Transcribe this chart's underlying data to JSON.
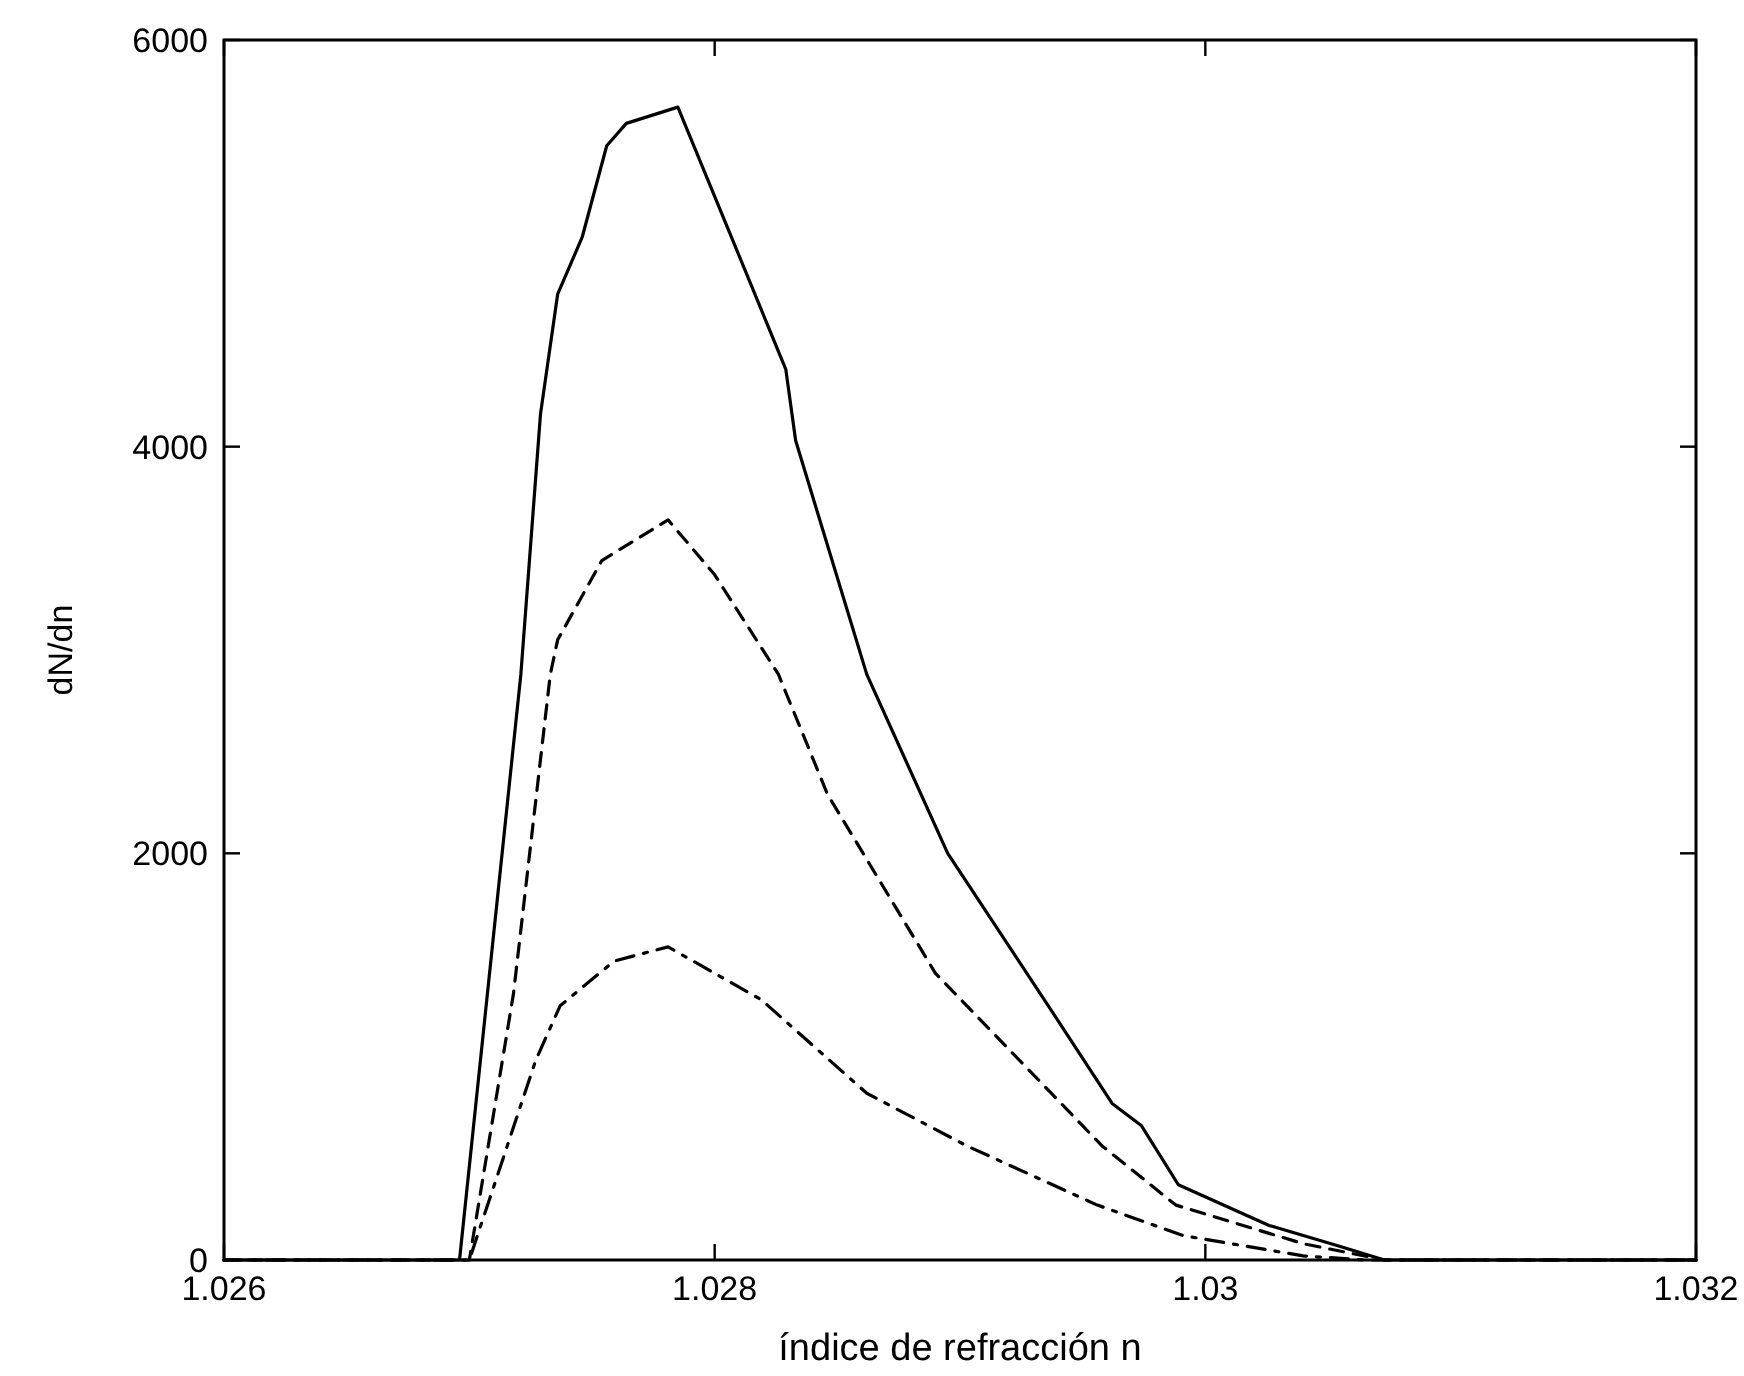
{
  "chart_data": {
    "type": "line",
    "xlabel": "índice de refracción n",
    "ylabel": "dN/dn",
    "xlim": [
      1.026,
      1.032
    ],
    "ylim": [
      0,
      6000
    ],
    "xticks": [
      1.026,
      1.028,
      1.03,
      1.032
    ],
    "yticks": [
      0,
      2000,
      4000,
      6000
    ],
    "grid": false,
    "marker": "none",
    "series": [
      {
        "color": "#000000",
        "line_style": "solid",
        "x": [
          1.026,
          1.02696,
          1.02721,
          1.02729,
          1.02736,
          1.02746,
          1.02756,
          1.02764,
          1.02785,
          1.02813,
          1.02829,
          1.02833,
          1.02862,
          1.02895,
          1.02936,
          1.02962,
          1.02974,
          1.02989,
          1.03026,
          1.03054,
          1.03073,
          1.032
        ],
        "values": [
          0,
          0,
          2880,
          4160,
          4750,
          5030,
          5480,
          5590,
          5670,
          4850,
          4380,
          4030,
          2880,
          2000,
          1250,
          770,
          660,
          370,
          170,
          70,
          0,
          0
        ]
      },
      {
        "color": "#000000",
        "line_style": "dashed",
        "x": [
          1.026,
          1.027,
          1.02718,
          1.02733,
          1.02736,
          1.02754,
          1.02781,
          1.028,
          1.02826,
          1.02846,
          1.0289,
          1.02958,
          1.02988,
          1.0304,
          1.03073,
          1.032
        ],
        "values": [
          0,
          0,
          1310,
          2880,
          3050,
          3440,
          3640,
          3370,
          2880,
          2290,
          1410,
          560,
          270,
          80,
          0,
          0
        ]
      },
      {
        "color": "#000000",
        "line_style": "dashdot",
        "x": [
          1.026,
          1.027,
          1.02727,
          1.02737,
          1.02759,
          1.02781,
          1.02819,
          1.02862,
          1.02903,
          1.02956,
          1.02991,
          1.0304,
          1.03065,
          1.032
        ],
        "values": [
          0,
          0,
          980,
          1250,
          1470,
          1540,
          1280,
          820,
          560,
          270,
          120,
          20,
          0,
          0
        ]
      }
    ]
  }
}
